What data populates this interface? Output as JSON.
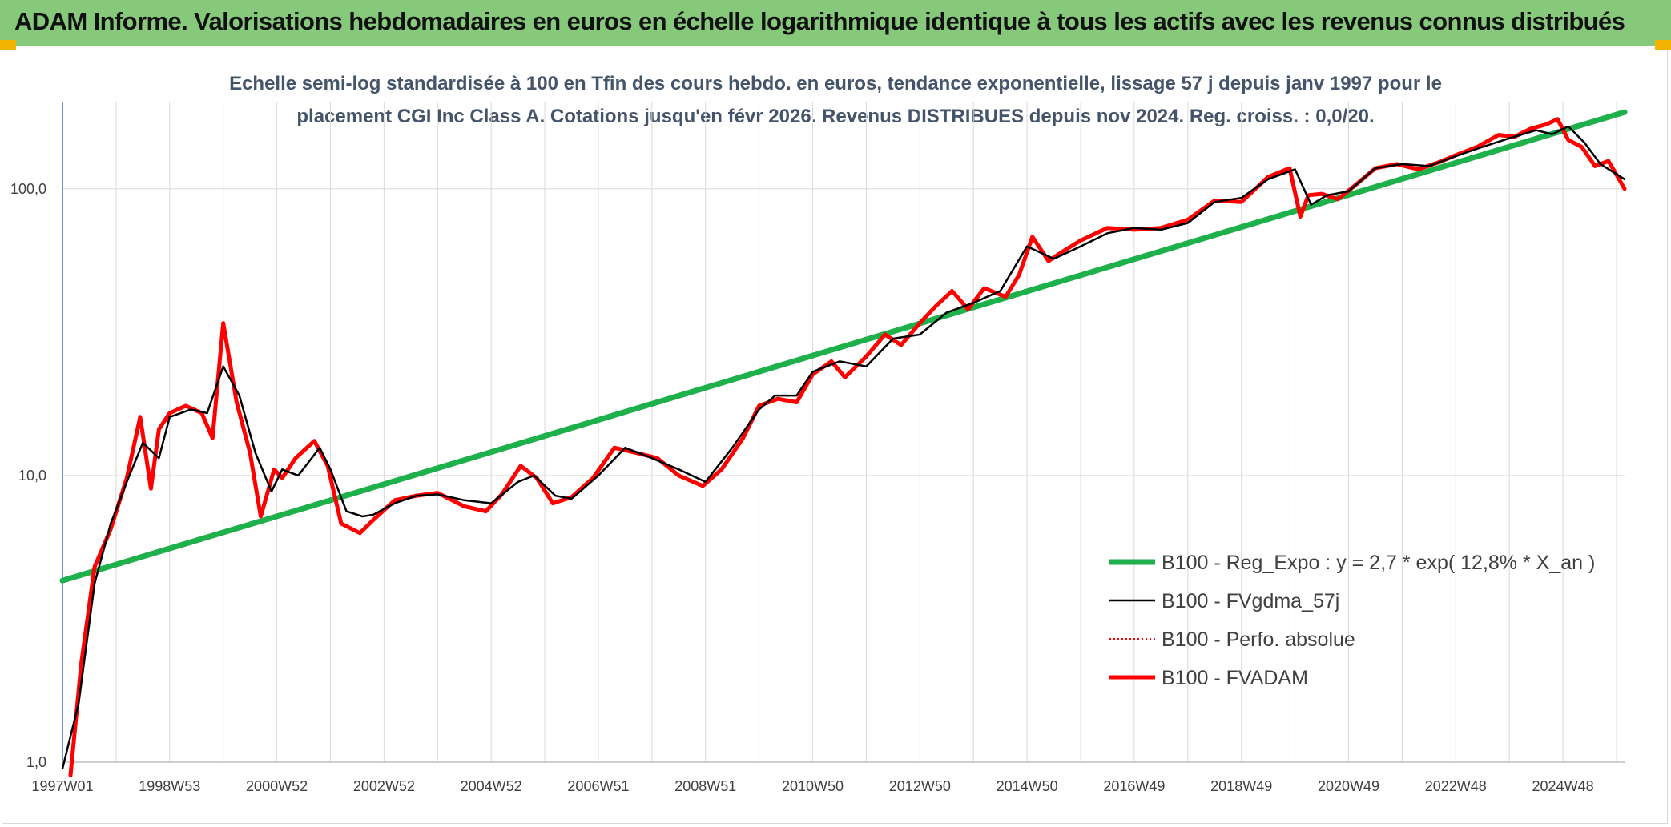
{
  "header": {
    "title": "ADAM Informe. Valorisations hebdomadaires en euros en échelle logarithmique identique à tous les actifs avec les revenus connus distribués"
  },
  "colors": {
    "header_bg": "#86c97a",
    "accent_corner": "#f2b400",
    "green": "#1db04b",
    "red": "#ff0000",
    "black": "#000000",
    "grid": "#d9d9d9"
  },
  "chart_data": {
    "type": "line",
    "subtitle_line1": "Echelle semi-log standardisée à 100 en Tfin des cours hebdo. en euros, tendance exponentielle, lissage 57 j depuis janv 1997 pour le",
    "subtitle_line2": "placement CGI Inc Class A. Cotations jusqu'en févr 2026. Revenus DISTRIBUES depuis nov 2024. Reg. croiss. : 0,0/20.",
    "y_scale": "log",
    "ylim": [
      1,
      200
    ],
    "xlim": [
      1997.0,
      2026.15
    ],
    "y_ticks": [
      {
        "value": 1,
        "label": "1,0"
      },
      {
        "value": 10,
        "label": "10,0"
      },
      {
        "value": 100,
        "label": "100,0"
      }
    ],
    "x_ticks": [
      {
        "value": 1997.0,
        "label": "1997W01"
      },
      {
        "value": 1999.0,
        "label": "1998W53"
      },
      {
        "value": 2001.0,
        "label": "2000W52"
      },
      {
        "value": 2003.0,
        "label": "2002W52"
      },
      {
        "value": 2005.0,
        "label": "2004W52"
      },
      {
        "value": 2007.0,
        "label": "2006W51"
      },
      {
        "value": 2009.0,
        "label": "2008W51"
      },
      {
        "value": 2011.0,
        "label": "2010W50"
      },
      {
        "value": 2013.0,
        "label": "2012W50"
      },
      {
        "value": 2015.0,
        "label": "2014W50"
      },
      {
        "value": 2017.0,
        "label": "2016W49"
      },
      {
        "value": 2019.0,
        "label": "2018W49"
      },
      {
        "value": 2021.0,
        "label": "2020W49"
      },
      {
        "value": 2023.0,
        "label": "2022W48"
      },
      {
        "value": 2025.0,
        "label": "2024W48"
      }
    ],
    "grid": true,
    "legend_position": "lower-right",
    "series": [
      {
        "name": "B100 - Reg_Expo : y = 2,7 * exp( 12,8% *  X_an )",
        "color": "#1db04b",
        "style": "solid-thick",
        "x": [
          1997.0,
          2026.15
        ],
        "y": [
          4.3,
          185
        ]
      },
      {
        "name": "B100 - FVgdma_57j",
        "color": "#000000",
        "style": "solid-thin",
        "x": [
          1997.0,
          1997.3,
          1997.6,
          1997.9,
          1998.2,
          1998.5,
          1998.8,
          1999.0,
          1999.4,
          1999.7,
          2000.0,
          2000.3,
          2000.6,
          2000.9,
          2001.1,
          2001.4,
          2001.8,
          2002.0,
          2002.3,
          2002.6,
          2002.8,
          2003.2,
          2003.6,
          2004.0,
          2004.5,
          2005.0,
          2005.5,
          2005.8,
          2006.2,
          2006.5,
          2007.0,
          2007.5,
          2008.0,
          2008.5,
          2009.0,
          2009.5,
          2010.0,
          2010.3,
          2010.7,
          2011.0,
          2011.5,
          2012.0,
          2012.5,
          2013.0,
          2013.5,
          2014.0,
          2014.5,
          2015.0,
          2015.5,
          2016.0,
          2016.5,
          2017.0,
          2017.5,
          2018.0,
          2018.5,
          2019.0,
          2019.5,
          2020.0,
          2020.3,
          2020.6,
          2021.0,
          2021.5,
          2022.0,
          2022.5,
          2023.0,
          2023.5,
          2024.0,
          2024.5,
          2024.8,
          2025.1,
          2025.4,
          2025.7,
          2026.15
        ],
        "y": [
          0.95,
          1.6,
          4.2,
          6.8,
          9.5,
          13.0,
          11.5,
          16.0,
          17.0,
          16.5,
          24.0,
          19.0,
          12.0,
          8.8,
          10.5,
          10.0,
          12.5,
          10.5,
          7.5,
          7.2,
          7.3,
          8.0,
          8.5,
          8.6,
          8.2,
          8.0,
          9.5,
          10.0,
          8.5,
          8.3,
          10.0,
          12.5,
          11.5,
          10.5,
          9.5,
          12.5,
          17.0,
          19.0,
          19.0,
          23.0,
          25.0,
          24.0,
          30.0,
          31.0,
          37.0,
          40.0,
          44.0,
          63.0,
          57.0,
          63.0,
          70.0,
          73.0,
          72.0,
          76.0,
          90.0,
          93.0,
          108.0,
          117.0,
          88.0,
          95.0,
          98.0,
          118.0,
          122.0,
          120.0,
          130.0,
          140.0,
          150.0,
          160.0,
          155.0,
          165.0,
          145.0,
          122.0,
          108.0
        ]
      },
      {
        "name": "B100 - Perfo. absolue",
        "color": "#ff0000",
        "style": "dotted",
        "x": [],
        "y": []
      },
      {
        "name": "B100 - FVADAM",
        "color": "#ff0000",
        "style": "solid-thick",
        "x": [
          1997.15,
          1997.35,
          1997.6,
          1997.9,
          1998.2,
          1998.45,
          1998.65,
          1998.8,
          1999.0,
          1999.3,
          1999.6,
          1999.8,
          2000.0,
          2000.25,
          2000.5,
          2000.7,
          2000.95,
          2001.1,
          2001.35,
          2001.7,
          2001.95,
          2002.2,
          2002.55,
          2002.8,
          2003.2,
          2003.6,
          2004.0,
          2004.5,
          2004.9,
          2005.2,
          2005.55,
          2005.85,
          2006.15,
          2006.5,
          2006.9,
          2007.3,
          2007.7,
          2008.1,
          2008.5,
          2008.95,
          2009.3,
          2009.7,
          2010.0,
          2010.35,
          2010.7,
          2011.0,
          2011.35,
          2011.6,
          2012.0,
          2012.35,
          2012.65,
          2013.0,
          2013.3,
          2013.6,
          2013.9,
          2014.2,
          2014.6,
          2014.85,
          2015.1,
          2015.4,
          2015.7,
          2016.0,
          2016.5,
          2017.0,
          2017.5,
          2018.0,
          2018.5,
          2019.0,
          2019.5,
          2019.9,
          2020.1,
          2020.25,
          2020.5,
          2020.8,
          2021.1,
          2021.5,
          2021.9,
          2022.3,
          2022.7,
          2023.0,
          2023.4,
          2023.8,
          2024.1,
          2024.4,
          2024.7,
          2024.9,
          2025.1,
          2025.35,
          2025.6,
          2025.85,
          2026.0,
          2026.15
        ],
        "y": [
          0.9,
          2.2,
          4.8,
          6.5,
          9.8,
          16.0,
          9.0,
          14.5,
          16.5,
          17.5,
          16.5,
          13.5,
          34.0,
          18.0,
          12.0,
          7.2,
          10.5,
          9.8,
          11.5,
          13.2,
          10.8,
          6.8,
          6.3,
          7.0,
          8.2,
          8.5,
          8.7,
          7.8,
          7.5,
          8.6,
          10.8,
          9.8,
          8.0,
          8.4,
          9.8,
          12.5,
          12.0,
          11.5,
          10.0,
          9.2,
          10.5,
          13.5,
          17.5,
          18.5,
          18.0,
          22.5,
          25.0,
          22.0,
          26.0,
          31.0,
          28.5,
          34.0,
          39.0,
          44.0,
          38.0,
          45.0,
          42.0,
          50.0,
          68.0,
          56.0,
          61.0,
          66.0,
          73.0,
          72.0,
          73.0,
          78.0,
          91.0,
          90.0,
          110.0,
          118.0,
          80.0,
          95.0,
          96.0,
          92.0,
          102.0,
          118.0,
          122.0,
          117.0,
          124.0,
          131.0,
          140.0,
          154.0,
          152.0,
          162.0,
          168.0,
          175.0,
          148.0,
          140.0,
          120.0,
          125.0,
          112.0,
          100.0
        ]
      }
    ]
  }
}
